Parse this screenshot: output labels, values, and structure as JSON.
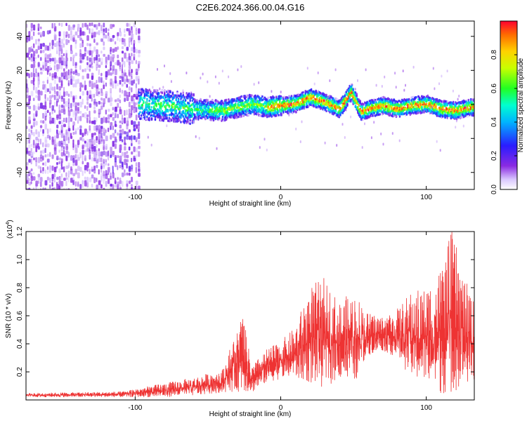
{
  "title": "C2E6.2024.366.00.04.G16",
  "chart_data": [
    {
      "type": "heatmap",
      "xlabel": "Height of straight line (km)",
      "ylabel": "Frequency (Hz)",
      "xlim": [
        -175,
        133
      ],
      "ylim": [
        -50,
        49
      ],
      "xticks": [
        -100,
        0,
        100
      ],
      "yticks": [
        -40,
        -20,
        0,
        20,
        40
      ],
      "colorbar": {
        "label": "Normalized spectral amplitude",
        "range": [
          0,
          1
        ],
        "ticks": [
          0.0,
          0.2,
          0.4,
          0.6,
          0.8
        ],
        "colormap": "rainbow (light violet to red)"
      },
      "ridge_frequency_hz": [
        {
          "x": -100,
          "y": 1
        },
        {
          "x": -80,
          "y": 0
        },
        {
          "x": -60,
          "y": -2
        },
        {
          "x": -40,
          "y": -3
        },
        {
          "x": -20,
          "y": 1
        },
        {
          "x": -10,
          "y": -1
        },
        {
          "x": 0,
          "y": 0
        },
        {
          "x": 10,
          "y": 1
        },
        {
          "x": 20,
          "y": 5
        },
        {
          "x": 30,
          "y": 2
        },
        {
          "x": 40,
          "y": -2
        },
        {
          "x": 48,
          "y": 8
        },
        {
          "x": 55,
          "y": -4
        },
        {
          "x": 60,
          "y": -2
        },
        {
          "x": 70,
          "y": 0
        },
        {
          "x": 80,
          "y": -2
        },
        {
          "x": 90,
          "y": 0
        },
        {
          "x": 100,
          "y": 1
        },
        {
          "x": 110,
          "y": -2
        },
        {
          "x": 120,
          "y": -3
        },
        {
          "x": 130,
          "y": -1
        }
      ]
    },
    {
      "type": "line",
      "xlabel": "Height of straight line (km)",
      "ylabel": "SNR (10 * v/v)",
      "y_multiplier": "(x10",
      "y_multiplier_exp": "4",
      "xlim": [
        -175,
        133
      ],
      "ylim": [
        0,
        1.2
      ],
      "xticks": [
        -100,
        0,
        100
      ],
      "yticks": [
        0.2,
        0.4,
        0.6,
        0.8,
        1.0,
        1.2
      ],
      "color": "#ee3333",
      "envelope": [
        {
          "x": -175,
          "low": 0.02,
          "high": 0.05
        },
        {
          "x": -110,
          "low": 0.02,
          "high": 0.06
        },
        {
          "x": -100,
          "low": 0.02,
          "high": 0.08
        },
        {
          "x": -80,
          "low": 0.02,
          "high": 0.12
        },
        {
          "x": -60,
          "low": 0.03,
          "high": 0.16
        },
        {
          "x": -40,
          "low": 0.05,
          "high": 0.22
        },
        {
          "x": -26,
          "low": 0.06,
          "high": 0.62
        },
        {
          "x": -20,
          "low": 0.05,
          "high": 0.24
        },
        {
          "x": -10,
          "low": 0.12,
          "high": 0.36
        },
        {
          "x": 0,
          "low": 0.15,
          "high": 0.42
        },
        {
          "x": 10,
          "low": 0.15,
          "high": 0.52
        },
        {
          "x": 20,
          "low": 0.12,
          "high": 0.82
        },
        {
          "x": 30,
          "low": 0.08,
          "high": 0.87
        },
        {
          "x": 40,
          "low": 0.15,
          "high": 0.7
        },
        {
          "x": 50,
          "low": 0.1,
          "high": 0.78
        },
        {
          "x": 60,
          "low": 0.32,
          "high": 0.62
        },
        {
          "x": 70,
          "low": 0.35,
          "high": 0.6
        },
        {
          "x": 80,
          "low": 0.3,
          "high": 0.65
        },
        {
          "x": 90,
          "low": 0.15,
          "high": 0.78
        },
        {
          "x": 100,
          "low": 0.12,
          "high": 0.8
        },
        {
          "x": 110,
          "low": 0.04,
          "high": 0.95
        },
        {
          "x": 118,
          "low": 0.05,
          "high": 1.22
        },
        {
          "x": 125,
          "low": 0.1,
          "high": 0.9
        },
        {
          "x": 133,
          "low": 0.12,
          "high": 0.7
        }
      ]
    }
  ]
}
